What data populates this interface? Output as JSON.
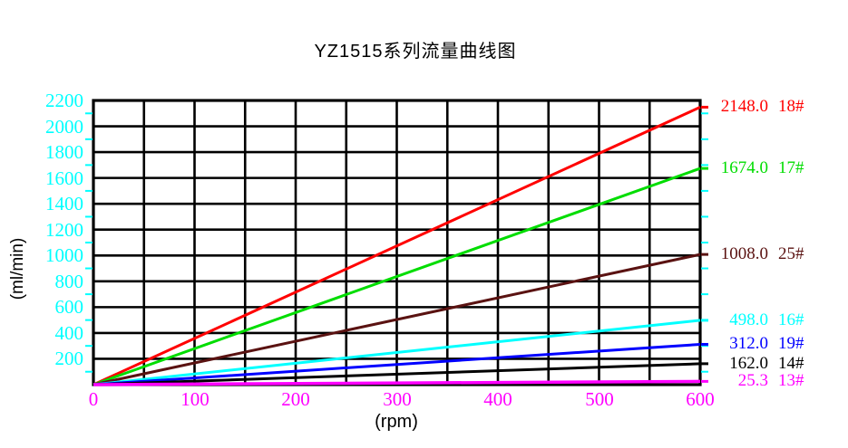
{
  "title": "YZ1515系列流量曲线图",
  "chart_data": {
    "type": "line",
    "title": "YZ1515系列流量曲线图",
    "xlabel": "(rpm)",
    "ylabel": "(ml/min)",
    "xlim": [
      0,
      600
    ],
    "ylim": [
      0,
      2200
    ],
    "x_ticks": [
      0,
      100,
      200,
      300,
      400,
      500,
      600
    ],
    "y_ticks": [
      200,
      400,
      600,
      800,
      1000,
      1200,
      1400,
      1600,
      1800,
      2000,
      2200
    ],
    "x_grid_step": 50,
    "y_grid_step": 200,
    "y_minor_tick_step": 100,
    "grid": true,
    "legend_position": "right-edge-end-labels",
    "colors": {
      "grid": "#000000",
      "x_tick_labels": "#ff00ff",
      "y_tick_labels": "#00ffff",
      "axis_text": "#000000"
    },
    "series": [
      {
        "name": "18#",
        "color": "#ff0000",
        "x": [
          0,
          600
        ],
        "values": [
          0,
          2148.0
        ],
        "end_label": "2148.0"
      },
      {
        "name": "17#",
        "color": "#00dd00",
        "x": [
          0,
          600
        ],
        "values": [
          0,
          1674.0
        ],
        "end_label": "1674.0"
      },
      {
        "name": "25#",
        "color": "#5a1211",
        "x": [
          0,
          600
        ],
        "values": [
          0,
          1008.0
        ],
        "end_label": "1008.0"
      },
      {
        "name": "16#",
        "color": "#00ffff",
        "x": [
          0,
          600
        ],
        "values": [
          0,
          498.0
        ],
        "end_label": "498.0"
      },
      {
        "name": "19#",
        "color": "#0000ff",
        "x": [
          0,
          600
        ],
        "values": [
          0,
          312.0
        ],
        "end_label": "312.0"
      },
      {
        "name": "14#",
        "color": "#000000",
        "x": [
          0,
          600
        ],
        "values": [
          0,
          162.0
        ],
        "end_label": "162.0"
      },
      {
        "name": "13#",
        "color": "#ff00ff",
        "x": [
          0,
          600
        ],
        "values": [
          0,
          25.3
        ],
        "end_label": "25.3"
      }
    ]
  }
}
